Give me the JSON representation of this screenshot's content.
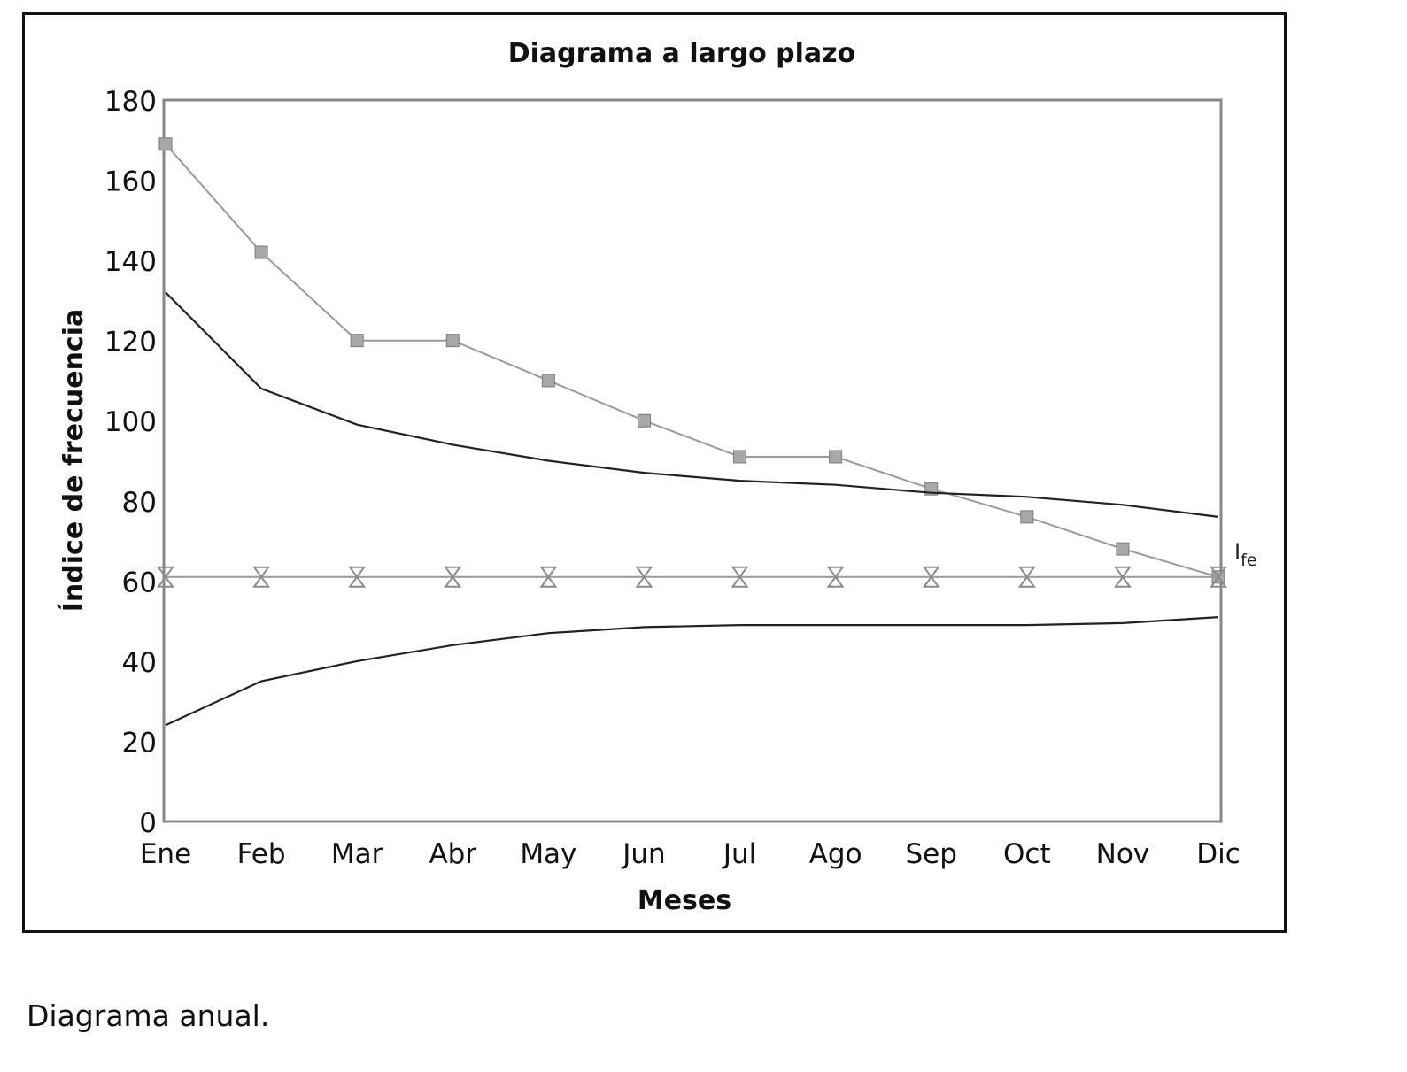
{
  "caption": "Diagrama anual.",
  "chart_data": {
    "type": "line",
    "title": "Diagrama a largo plazo",
    "xlabel": "Meses",
    "ylabel": "Índice de frecuencia",
    "categories": [
      "Ene",
      "Feb",
      "Mar",
      "Abr",
      "May",
      "Jun",
      "Jul",
      "Ago",
      "Sep",
      "Oct",
      "Nov",
      "Dic"
    ],
    "ylim": [
      0,
      180
    ],
    "yticks": [
      0,
      20,
      40,
      60,
      80,
      100,
      120,
      140,
      160,
      180
    ],
    "grid": false,
    "series": [
      {
        "role": "observed",
        "marker": "square",
        "color": "#9a9a9a",
        "values": [
          169,
          142,
          120,
          120,
          110,
          100,
          91,
          91,
          83,
          76,
          68,
          61
        ]
      },
      {
        "role": "upper-limit",
        "marker": "none",
        "color": "#222222",
        "values": [
          132,
          108,
          99,
          94,
          90,
          87,
          85,
          84,
          82,
          81,
          79,
          76
        ]
      },
      {
        "role": "ife-line",
        "name": "I",
        "name_sub": "fe",
        "marker": "hourglass",
        "color": "#9a9a9a",
        "values": [
          61,
          61,
          61,
          61,
          61,
          61,
          61,
          61,
          61,
          61,
          61,
          61
        ]
      },
      {
        "role": "lower-limit",
        "marker": "none",
        "color": "#222222",
        "values": [
          24,
          35,
          40,
          44,
          47,
          48.5,
          49,
          49,
          49,
          49,
          49.5,
          51
        ]
      }
    ],
    "colors": {
      "axis": "#888888",
      "text": "#111111"
    }
  }
}
